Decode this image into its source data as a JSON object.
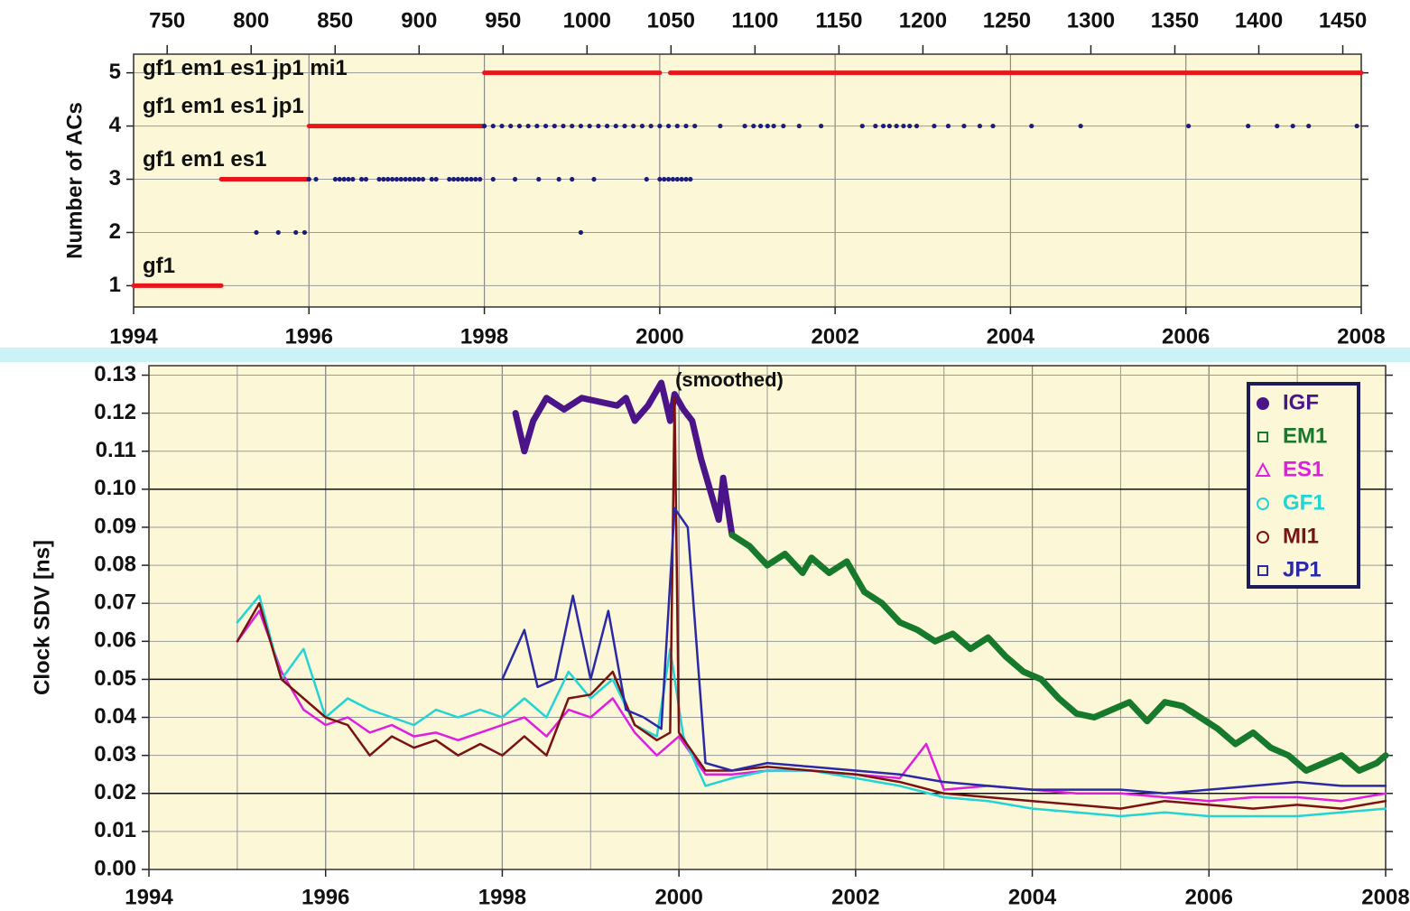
{
  "chart_data": [
    {
      "type": "scatter",
      "ylabel": "Number of ACs",
      "xlim": [
        1994,
        2008
      ],
      "xticks": [
        1994,
        1996,
        1998,
        2000,
        2002,
        2004,
        2006,
        2008
      ],
      "x2lim": [
        730,
        1461
      ],
      "x2ticks": [
        750,
        800,
        850,
        900,
        950,
        1000,
        1050,
        1100,
        1150,
        1200,
        1250,
        1300,
        1350,
        1400,
        1450
      ],
      "ylim": [
        0.6,
        5.35
      ],
      "yticks": [
        1,
        2,
        3,
        4,
        5
      ],
      "grid": true,
      "annotations": [
        {
          "text": "gf1",
          "y": 1
        },
        {
          "text": "gf1 em1 es1",
          "y": 3
        },
        {
          "text": "gf1 em1 es1 jp1",
          "y": 4
        },
        {
          "text": "gf1 em1 es1 jp1 mi1",
          "y": 5
        }
      ],
      "series": [
        {
          "style": "line",
          "color": "#e8161b",
          "x": [
            1994,
            1995,
            null,
            1995,
            1996,
            null,
            1996,
            1998,
            null,
            1998,
            2000,
            null,
            2000.12,
            2008
          ],
          "values": [
            1,
            1,
            null,
            3,
            3,
            null,
            4,
            4,
            null,
            5,
            5,
            null,
            5,
            5
          ]
        },
        {
          "style": "dots",
          "color": "#1c1c7a",
          "x": [
            1995.4,
            1995.65,
            1995.85,
            1995.95,
            1999.1
          ],
          "values": [
            2,
            2,
            2,
            2,
            2
          ]
        },
        {
          "style": "dots",
          "color": "#1c1c7a",
          "x": [
            1996.0,
            1996.08,
            1996.3,
            1996.35,
            1996.4,
            1996.45,
            1996.5,
            1996.6,
            1996.65,
            1996.8,
            1996.85,
            1996.9,
            1996.95,
            1997.0,
            1997.05,
            1997.1,
            1997.15,
            1997.2,
            1997.25,
            1997.3,
            1997.4,
            1997.45,
            1997.6,
            1997.65,
            1997.7,
            1997.75,
            1997.8,
            1997.85,
            1997.9,
            1997.95,
            1998.1,
            1998.35,
            1998.62,
            1998.85,
            1999.0,
            1999.25,
            1999.85,
            2000.0,
            2000.05,
            2000.1,
            2000.15,
            2000.2,
            2000.25,
            2000.3,
            2000.35
          ],
          "values": [
            3,
            3,
            3,
            3,
            3,
            3,
            3,
            3,
            3,
            3,
            3,
            3,
            3,
            3,
            3,
            3,
            3,
            3,
            3,
            3,
            3,
            3,
            3,
            3,
            3,
            3,
            3,
            3,
            3,
            3,
            3,
            3,
            3,
            3,
            3,
            3,
            3,
            3,
            3,
            3,
            3,
            3,
            3,
            3,
            3
          ]
        },
        {
          "style": "dots",
          "color": "#1c1c7a",
          "x": [
            1998.0,
            1998.1,
            1998.2,
            1998.3,
            1998.4,
            1998.5,
            1998.6,
            1998.7,
            1998.8,
            1998.9,
            1999.0,
            1999.1,
            1999.2,
            1999.3,
            1999.4,
            1999.5,
            1999.6,
            1999.7,
            1999.8,
            1999.9,
            2000.0,
            2000.1,
            2000.2,
            2000.3,
            2000.4,
            2000.69,
            2000.97,
            2001.07,
            2001.15,
            2001.23,
            2001.3,
            2001.41,
            2001.59,
            2001.84,
            2002.31,
            2002.46,
            2002.55,
            2002.62,
            2002.7,
            2002.78,
            2002.85,
            2002.93,
            2003.13,
            2003.29,
            2003.47,
            2003.65,
            2003.8,
            2004.24,
            2004.8,
            2006.03,
            2006.71,
            2007.04,
            2007.22,
            2007.4,
            2007.95
          ],
          "values": [
            4,
            4,
            4,
            4,
            4,
            4,
            4,
            4,
            4,
            4,
            4,
            4,
            4,
            4,
            4,
            4,
            4,
            4,
            4,
            4,
            4,
            4,
            4,
            4,
            4,
            4,
            4,
            4,
            4,
            4,
            4,
            4,
            4,
            4,
            4,
            4,
            4,
            4,
            4,
            4,
            4,
            4,
            4,
            4,
            4,
            4,
            4,
            4,
            4,
            4,
            4,
            4,
            4,
            4,
            4
          ]
        }
      ]
    },
    {
      "type": "line",
      "ylabel": "Clock SDV [ns]",
      "annotation": "(smoothed)",
      "xlim": [
        1994,
        2008
      ],
      "xticks": [
        1994,
        1996,
        1998,
        2000,
        2002,
        2004,
        2006,
        2008
      ],
      "xminorticks": [
        1994,
        1995,
        1996,
        1997,
        1998,
        1999,
        2000,
        2001,
        2002,
        2003,
        2004,
        2005,
        2006,
        2007,
        2008
      ],
      "ylim": [
        0,
        0.1325
      ],
      "yticks": [
        {
          "value": 0,
          "label": "0.00"
        },
        0.01,
        0.02,
        0.03,
        0.04,
        0.05,
        0.06,
        0.07,
        0.08,
        0.09,
        {
          "value": 0.1,
          "label": "0.10"
        },
        0.11,
        0.12,
        0.13
      ],
      "hlines": [
        0.1,
        0.05,
        0.02
      ],
      "grid": true,
      "legend": "upper right",
      "series": [
        {
          "name": "IGF",
          "color": "#4b1488",
          "width": 7,
          "marker": "dot",
          "x": [
            1998.15,
            1998.25,
            1998.35,
            1998.5,
            1998.7,
            1998.9,
            1999.1,
            1999.3,
            1999.4,
            1999.5,
            1999.65,
            1999.8,
            1999.9,
            1999.95,
            2000.05,
            2000.15,
            2000.25,
            2000.35,
            2000.45,
            2000.5,
            2000.6
          ],
          "values": [
            0.12,
            0.11,
            0.118,
            0.124,
            0.121,
            0.124,
            0.123,
            0.122,
            0.124,
            0.118,
            0.122,
            0.128,
            0.118,
            0.125,
            0.121,
            0.118,
            0.108,
            0.1,
            0.092,
            0.103,
            0.088
          ]
        },
        {
          "name": "EM1",
          "color": "#17792b",
          "width": 7,
          "marker": "square",
          "x": [
            2000.6,
            2000.8,
            2001.0,
            2001.2,
            2001.4,
            2001.5,
            2001.7,
            2001.9,
            2002.1,
            2002.3,
            2002.5,
            2002.7,
            2002.9,
            2003.1,
            2003.3,
            2003.5,
            2003.7,
            2003.9,
            2004.1,
            2004.3,
            2004.5,
            2004.7,
            2004.9,
            2005.1,
            2005.3,
            2005.5,
            2005.7,
            2005.9,
            2006.1,
            2006.3,
            2006.5,
            2006.7,
            2006.9,
            2007.1,
            2007.3,
            2007.5,
            2007.7,
            2007.9,
            2008.0
          ],
          "values": [
            0.088,
            0.085,
            0.08,
            0.083,
            0.078,
            0.082,
            0.078,
            0.081,
            0.073,
            0.07,
            0.065,
            0.063,
            0.06,
            0.062,
            0.058,
            0.061,
            0.056,
            0.052,
            0.05,
            0.045,
            0.041,
            0.04,
            0.042,
            0.044,
            0.039,
            0.044,
            0.043,
            0.04,
            0.037,
            0.033,
            0.036,
            0.032,
            0.03,
            0.026,
            0.028,
            0.03,
            0.026,
            0.028,
            0.03
          ]
        },
        {
          "name": "ES1",
          "color": "#e01ee0",
          "width": 2.5,
          "marker": "triangle",
          "x": [
            1995.0,
            1995.25,
            1995.5,
            1995.75,
            1996.0,
            1996.25,
            1996.5,
            1996.75,
            1997.0,
            1997.25,
            1997.5,
            1997.75,
            1998.0,
            1998.25,
            1998.5,
            1998.75,
            1999.0,
            1999.25,
            1999.5,
            1999.75,
            2000.0,
            2000.3,
            2000.6,
            2001.0,
            2001.5,
            2002.0,
            2002.5,
            2002.8,
            2003.0,
            2003.5,
            2004.0,
            2004.5,
            2005.0,
            2005.5,
            2006.0,
            2006.5,
            2007.0,
            2007.5,
            2008.0
          ],
          "values": [
            0.06,
            0.068,
            0.052,
            0.042,
            0.038,
            0.04,
            0.036,
            0.038,
            0.035,
            0.036,
            0.034,
            0.036,
            0.038,
            0.04,
            0.035,
            0.042,
            0.04,
            0.045,
            0.036,
            0.03,
            0.035,
            0.025,
            0.025,
            0.026,
            0.026,
            0.025,
            0.024,
            0.033,
            0.021,
            0.022,
            0.021,
            0.02,
            0.02,
            0.019,
            0.018,
            0.019,
            0.019,
            0.018,
            0.02
          ]
        },
        {
          "name": "GF1",
          "color": "#22d4d4",
          "width": 2.5,
          "marker": "circle",
          "x": [
            1995.0,
            1995.25,
            1995.5,
            1995.75,
            1996.0,
            1996.25,
            1996.5,
            1996.75,
            1997.0,
            1997.25,
            1997.5,
            1997.75,
            1998.0,
            1998.25,
            1998.5,
            1998.75,
            1999.0,
            1999.25,
            1999.5,
            1999.75,
            1999.9,
            2000.05,
            2000.3,
            2000.6,
            2001.0,
            2001.5,
            2002.0,
            2002.5,
            2003.0,
            2003.5,
            2004.0,
            2004.5,
            2005.0,
            2005.5,
            2006.0,
            2006.5,
            2007.0,
            2007.5,
            2008.0
          ],
          "values": [
            0.065,
            0.072,
            0.05,
            0.058,
            0.04,
            0.045,
            0.042,
            0.04,
            0.038,
            0.042,
            0.04,
            0.042,
            0.04,
            0.045,
            0.04,
            0.052,
            0.045,
            0.05,
            0.038,
            0.035,
            0.058,
            0.035,
            0.022,
            0.024,
            0.026,
            0.026,
            0.024,
            0.022,
            0.019,
            0.018,
            0.016,
            0.015,
            0.014,
            0.015,
            0.014,
            0.014,
            0.014,
            0.015,
            0.016
          ]
        },
        {
          "name": "MI1",
          "color": "#7a1212",
          "width": 2.5,
          "marker": "circle",
          "x": [
            1995.0,
            1995.25,
            1995.5,
            1995.75,
            1996.0,
            1996.25,
            1996.5,
            1996.75,
            1997.0,
            1997.25,
            1997.5,
            1997.75,
            1998.0,
            1998.25,
            1998.5,
            1998.75,
            1999.0,
            1999.25,
            1999.5,
            1999.75,
            1999.9,
            1999.95,
            2000.0,
            2000.3,
            2000.6,
            2001.0,
            2001.5,
            2002.0,
            2002.5,
            2003.0,
            2003.5,
            2004.0,
            2004.5,
            2005.0,
            2005.5,
            2006.0,
            2006.5,
            2007.0,
            2007.5,
            2008.0
          ],
          "values": [
            0.06,
            0.07,
            0.05,
            0.045,
            0.04,
            0.038,
            0.03,
            0.035,
            0.032,
            0.034,
            0.03,
            0.033,
            0.03,
            0.035,
            0.03,
            0.045,
            0.046,
            0.052,
            0.038,
            0.034,
            0.036,
            0.124,
            0.036,
            0.026,
            0.026,
            0.027,
            0.026,
            0.025,
            0.023,
            0.02,
            0.019,
            0.018,
            0.017,
            0.016,
            0.018,
            0.017,
            0.016,
            0.017,
            0.016,
            0.018
          ]
        },
        {
          "name": "JP1",
          "color": "#2a2aa8",
          "width": 2.5,
          "marker": "square",
          "x": [
            1998.0,
            1998.25,
            1998.4,
            1998.6,
            1998.8,
            1999.0,
            1999.2,
            1999.4,
            1999.6,
            1999.8,
            1999.95,
            2000.1,
            2000.3,
            2000.6,
            2001.0,
            2001.5,
            2002.0,
            2002.5,
            2003.0,
            2003.5,
            2004.0,
            2004.5,
            2005.0,
            2005.5,
            2006.0,
            2006.5,
            2007.0,
            2007.5,
            2008.0
          ],
          "values": [
            0.05,
            0.063,
            0.048,
            0.05,
            0.072,
            0.05,
            0.068,
            0.042,
            0.04,
            0.037,
            0.095,
            0.09,
            0.028,
            0.026,
            0.028,
            0.027,
            0.026,
            0.025,
            0.023,
            0.022,
            0.021,
            0.021,
            0.021,
            0.02,
            0.021,
            0.022,
            0.023,
            0.022,
            0.022
          ]
        }
      ]
    }
  ]
}
